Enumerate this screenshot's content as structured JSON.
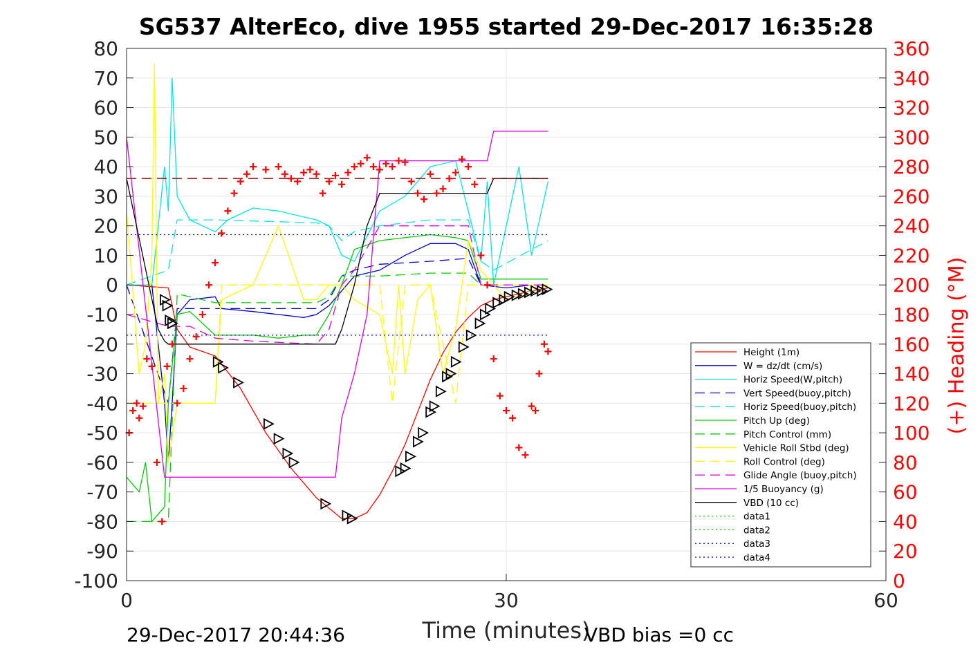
{
  "chart_data": {
    "type": "line",
    "title": "SG537 AlterEco, dive 1955 started 29-Dec-2017 16:35:28",
    "xlabel": "Time (minutes)",
    "ylabel": "",
    "y2label": "(+) Heading (°M)",
    "xlim": [
      0,
      60
    ],
    "ylim": [
      -100,
      80
    ],
    "y2lim": [
      0,
      360
    ],
    "x_ticks": [
      "0",
      "30",
      "60"
    ],
    "y_ticks": [
      "-100",
      "-90",
      "-80",
      "-70",
      "-60",
      "-50",
      "-40",
      "-30",
      "-20",
      "-10",
      "0",
      "10",
      "20",
      "30",
      "40",
      "50",
      "60",
      "70",
      "80"
    ],
    "y2_ticks": [
      "0",
      "20",
      "40",
      "60",
      "80",
      "100",
      "120",
      "140",
      "160",
      "180",
      "200",
      "220",
      "240",
      "260",
      "280",
      "300",
      "320",
      "340",
      "360"
    ],
    "grid": true,
    "legend_position": "bottom-right",
    "footer_left": "29-Dec-2017 20:44:36",
    "footer_right": "VBD bias =0 cc",
    "colors": {
      "red": "#ff0000",
      "blue": "#0000cc",
      "cyan": "#00e5e5",
      "green": "#00cc00",
      "yellow": "#ffff00",
      "magenta": "#dd00dd",
      "black": "#000000",
      "darkred": "#990000"
    },
    "legend": [
      {
        "label": "Height (1m)",
        "color": "#ff0000",
        "dash": "solid"
      },
      {
        "label": "W = dz/dt (cm/s)",
        "color": "#0000cc",
        "dash": "solid"
      },
      {
        "label": "Horiz Speed(W,pitch)",
        "color": "#00e5e5",
        "dash": "solid"
      },
      {
        "label": "Vert Speed(buoy,pitch)",
        "color": "#0000cc",
        "dash": "dashed"
      },
      {
        "label": "Horiz Speed(buoy,pitch)",
        "color": "#00e5e5",
        "dash": "dashed"
      },
      {
        "label": "Pitch Up (deg)",
        "color": "#00cc00",
        "dash": "solid"
      },
      {
        "label": "Pitch Control (mm)",
        "color": "#00cc00",
        "dash": "dashed"
      },
      {
        "label": "Vehicle Roll Stbd (deg)",
        "color": "#ffff00",
        "dash": "solid"
      },
      {
        "label": "Roll Control (deg)",
        "color": "#ffff00",
        "dash": "dashed"
      },
      {
        "label": "Glide Angle (buoy,pitch)",
        "color": "#dd00dd",
        "dash": "dashed"
      },
      {
        "label": "1/5 Buoyancy (g)",
        "color": "#dd00dd",
        "dash": "solid"
      },
      {
        "label": "VBD (10 cc)",
        "color": "#000000",
        "dash": "solid"
      },
      {
        "label": "data1",
        "color": "#00cc00",
        "dash": "dotted"
      },
      {
        "label": "data2",
        "color": "#00cc00",
        "dash": "dotted"
      },
      {
        "label": "data3",
        "color": "#0000cc",
        "dash": "dotted"
      },
      {
        "label": "data4",
        "color": "#0000cc",
        "dash": "dotted"
      }
    ],
    "series": [
      {
        "key": "height",
        "color": "#ff0000",
        "dash": "solid",
        "x": [
          0,
          3.3,
          4,
          5,
          7,
          9,
          11,
          13,
          15,
          17,
          18,
          19,
          20,
          21,
          22,
          23,
          24,
          25,
          26,
          27,
          28,
          29,
          30,
          31,
          32,
          33.3
        ],
        "y": [
          0,
          -1,
          -15,
          -21,
          -24,
          -35,
          -50,
          -62,
          -72,
          -79,
          -79,
          -77,
          -71,
          -63,
          -54,
          -43,
          -32,
          -23,
          -16,
          -11,
          -7,
          -5,
          -4,
          -3,
          -2,
          -1
        ]
      },
      {
        "key": "w",
        "color": "#0000cc",
        "dash": "solid",
        "x": [
          0,
          2,
          2.5,
          3,
          3.3,
          3.6,
          4,
          5,
          7,
          7.5,
          10,
          12,
          14,
          15,
          16,
          17,
          18,
          20,
          22,
          24,
          26,
          27,
          28,
          30,
          32,
          33.3
        ],
        "y": [
          0,
          0,
          -20,
          -40,
          -60,
          -40,
          -10,
          -5,
          -4,
          -8,
          -9,
          -10,
          -11,
          -10,
          -7,
          -2,
          3,
          5,
          10,
          14,
          14,
          12,
          0,
          -1,
          0,
          0
        ]
      },
      {
        "key": "horiz_w",
        "color": "#00e5e5",
        "dash": "solid",
        "x": [
          0,
          2,
          2.5,
          3,
          3.3,
          3.6,
          4,
          5,
          6,
          7,
          8,
          9,
          10,
          12,
          14,
          15,
          16,
          16.5,
          17,
          18,
          20,
          22,
          24,
          26,
          27,
          28,
          28.5,
          29,
          30,
          31,
          32,
          33.3
        ],
        "y": [
          0,
          0,
          20,
          40,
          25,
          70,
          30,
          22,
          20,
          18,
          22,
          24,
          26,
          25,
          23,
          22,
          20,
          15,
          10,
          8,
          25,
          30,
          40,
          42,
          25,
          8,
          35,
          0,
          20,
          40,
          10,
          35
        ]
      },
      {
        "key": "vert_buoy",
        "color": "#0000cc",
        "dash": "dashed",
        "x": [
          0,
          3.3,
          4,
          7,
          15,
          16,
          17,
          18,
          20,
          24,
          27,
          28,
          29,
          33.3
        ],
        "y": [
          0,
          -40,
          -8,
          -8,
          -8,
          -5,
          3,
          5,
          7,
          8,
          9,
          0,
          0,
          0
        ]
      },
      {
        "key": "horiz_buoy",
        "color": "#00e5e5",
        "dash": "dashed",
        "x": [
          0,
          3.3,
          4,
          7,
          15,
          16,
          17,
          18,
          20,
          24,
          27,
          28,
          29,
          33.3
        ],
        "y": [
          0,
          5,
          22,
          22,
          21,
          20,
          15,
          18,
          20,
          22,
          22,
          8,
          5,
          15
        ]
      },
      {
        "key": "pitch_up",
        "color": "#00cc00",
        "dash": "solid",
        "x": [
          0,
          1,
          1.5,
          2,
          3,
          3.3,
          4,
          5,
          7,
          10,
          12,
          14,
          15,
          16,
          17,
          18,
          20,
          24,
          26,
          27,
          28,
          30,
          33.3
        ],
        "y": [
          -65,
          -70,
          -60,
          -80,
          -75,
          -40,
          -10,
          -9,
          -17,
          -17,
          -18,
          -17,
          -17,
          -10,
          0,
          12,
          15,
          17,
          16,
          15,
          2,
          2,
          2
        ]
      },
      {
        "key": "pitch_ctrl",
        "color": "#00cc00",
        "dash": "dashed",
        "x": [
          0,
          3.3,
          4,
          7,
          15,
          16,
          17,
          18,
          20,
          24,
          27,
          28,
          29,
          33.3
        ],
        "y": [
          -80,
          -80,
          -3,
          -6,
          -6,
          -4,
          3,
          3,
          3,
          4,
          4,
          0,
          0,
          0
        ]
      },
      {
        "key": "roll",
        "color": "#ffff00",
        "dash": "solid",
        "x": [
          0,
          1,
          1.5,
          2,
          2.2,
          2.5,
          3,
          3.3,
          4,
          5,
          7,
          7.5,
          10,
          12,
          14,
          15,
          16,
          17,
          18,
          20,
          21,
          21.5,
          22,
          23,
          24,
          25,
          26,
          27,
          28,
          29,
          30,
          33.3
        ],
        "y": [
          25,
          -30,
          -20,
          10,
          75,
          -40,
          -30,
          -60,
          -40,
          -40,
          -40,
          -5,
          0,
          20,
          -5,
          -5,
          0,
          0,
          -5,
          -10,
          -30,
          0,
          -30,
          -5,
          0,
          -30,
          -15,
          15,
          5,
          0,
          -5,
          0
        ]
      },
      {
        "key": "roll_ctrl",
        "color": "#ffff00",
        "dash": "dashed",
        "x": [
          0,
          3.3,
          4,
          7,
          7.5,
          10,
          12,
          14,
          15,
          16,
          17,
          20,
          21,
          22,
          24,
          26,
          27,
          28,
          30,
          33.3
        ],
        "y": [
          -40,
          -40,
          -40,
          -40,
          0,
          0,
          0,
          0,
          0,
          0,
          0,
          0,
          -40,
          0,
          0,
          -40,
          0,
          0,
          0,
          0
        ]
      },
      {
        "key": "glide",
        "color": "#dd00dd",
        "dash": "dashed",
        "x": [
          0,
          3.3,
          4,
          5,
          7,
          10,
          15,
          16,
          17,
          18,
          20,
          24,
          27,
          28,
          29,
          33.3
        ],
        "y": [
          -10,
          -14,
          -14,
          -14,
          -18,
          -19,
          -20,
          -15,
          0,
          5,
          20,
          20,
          20,
          0,
          0,
          0
        ]
      },
      {
        "key": "buoyancy",
        "color": "#dd00dd",
        "dash": "solid",
        "x": [
          0,
          3,
          3.3,
          4,
          15,
          16,
          16.5,
          17,
          18,
          19,
          20,
          25,
          28,
          28.5,
          29,
          33.3
        ],
        "y": [
          50,
          -65,
          -65,
          -65,
          -65,
          -65,
          -65,
          -45,
          -30,
          -10,
          42,
          42,
          42,
          42,
          52,
          52
        ]
      },
      {
        "key": "vbd",
        "color": "#000000",
        "dash": "solid",
        "x": [
          0,
          2.5,
          3,
          3.3,
          4,
          15,
          16,
          16.5,
          17,
          18,
          19,
          20,
          24,
          28,
          28.5,
          29,
          30,
          33.3
        ],
        "y": [
          36,
          -15,
          -19,
          -20,
          -20,
          -20,
          -20,
          -20,
          -15,
          0,
          20,
          31,
          31,
          31,
          31,
          36,
          36,
          36
        ]
      },
      {
        "key": "target_dash",
        "color": "#990000",
        "dash": "dashed",
        "x": [
          0,
          33.3
        ],
        "y": [
          36,
          36
        ]
      },
      {
        "key": "data_top",
        "color": "#0000cc",
        "dash": "dotted",
        "x": [
          0,
          33.3
        ],
        "y": [
          17,
          17
        ]
      },
      {
        "key": "data_bottom",
        "color": "#0000cc",
        "dash": "dotted",
        "x": [
          0,
          33.3
        ],
        "y": [
          -17,
          -17
        ]
      }
    ],
    "heading_points": [
      {
        "x": 0.2,
        "h": 100
      },
      {
        "x": 0.5,
        "h": 115
      },
      {
        "x": 0.8,
        "h": 120
      },
      {
        "x": 1,
        "h": 110
      },
      {
        "x": 1.3,
        "h": 118
      },
      {
        "x": 1.6,
        "h": 150
      },
      {
        "x": 2,
        "h": 145
      },
      {
        "x": 2.4,
        "h": 80
      },
      {
        "x": 2.8,
        "h": 40
      },
      {
        "x": 3.2,
        "h": 145
      },
      {
        "x": 3.6,
        "h": 160
      },
      {
        "x": 4,
        "h": 120
      },
      {
        "x": 4.5,
        "h": 130
      },
      {
        "x": 5,
        "h": 150
      },
      {
        "x": 5.5,
        "h": 165
      },
      {
        "x": 6,
        "h": 180
      },
      {
        "x": 6.5,
        "h": 200
      },
      {
        "x": 7,
        "h": 215
      },
      {
        "x": 7.5,
        "h": 235
      },
      {
        "x": 8,
        "h": 250
      },
      {
        "x": 8.5,
        "h": 262
      },
      {
        "x": 9,
        "h": 270
      },
      {
        "x": 9.5,
        "h": 275
      },
      {
        "x": 10,
        "h": 280
      },
      {
        "x": 11,
        "h": 278
      },
      {
        "x": 12,
        "h": 280
      },
      {
        "x": 12.5,
        "h": 275
      },
      {
        "x": 13,
        "h": 272
      },
      {
        "x": 13.5,
        "h": 270
      },
      {
        "x": 14,
        "h": 276
      },
      {
        "x": 14.5,
        "h": 278
      },
      {
        "x": 15,
        "h": 275
      },
      {
        "x": 15.5,
        "h": 262
      },
      {
        "x": 16,
        "h": 270
      },
      {
        "x": 16.5,
        "h": 274
      },
      {
        "x": 17,
        "h": 268
      },
      {
        "x": 17.5,
        "h": 276
      },
      {
        "x": 18,
        "h": 280
      },
      {
        "x": 18.5,
        "h": 282
      },
      {
        "x": 19,
        "h": 286
      },
      {
        "x": 19.5,
        "h": 280
      },
      {
        "x": 20,
        "h": 278
      },
      {
        "x": 20.5,
        "h": 282
      },
      {
        "x": 21,
        "h": 280
      },
      {
        "x": 21.5,
        "h": 284
      },
      {
        "x": 22,
        "h": 283
      },
      {
        "x": 22.5,
        "h": 270
      },
      {
        "x": 23,
        "h": 262
      },
      {
        "x": 23.5,
        "h": 258
      },
      {
        "x": 24,
        "h": 275
      },
      {
        "x": 24.5,
        "h": 262
      },
      {
        "x": 25,
        "h": 265
      },
      {
        "x": 25.5,
        "h": 272
      },
      {
        "x": 26,
        "h": 276
      },
      {
        "x": 26.5,
        "h": 285
      },
      {
        "x": 27,
        "h": 280
      },
      {
        "x": 27.5,
        "h": 268
      },
      {
        "x": 28,
        "h": 220
      },
      {
        "x": 28.5,
        "h": 200
      },
      {
        "x": 29,
        "h": 150
      },
      {
        "x": 29.5,
        "h": 125
      },
      {
        "x": 30,
        "h": 115
      },
      {
        "x": 30.5,
        "h": 110
      },
      {
        "x": 31,
        "h": 90
      },
      {
        "x": 31.5,
        "h": 85
      },
      {
        "x": 32,
        "h": 118
      },
      {
        "x": 32.3,
        "h": 115
      },
      {
        "x": 32.6,
        "h": 140
      },
      {
        "x": 33,
        "h": 160
      },
      {
        "x": 33.3,
        "h": 155
      }
    ],
    "triangle_points": [
      {
        "x": 3.0,
        "y": -5
      },
      {
        "x": 3.2,
        "y": -7
      },
      {
        "x": 3.4,
        "y": -12
      },
      {
        "x": 3.6,
        "y": -13
      },
      {
        "x": 7.2,
        "y": -26
      },
      {
        "x": 7.6,
        "y": -28
      },
      {
        "x": 8.8,
        "y": -33
      },
      {
        "x": 11.2,
        "y": -47
      },
      {
        "x": 12.0,
        "y": -52
      },
      {
        "x": 12.7,
        "y": -57
      },
      {
        "x": 13.2,
        "y": -60
      },
      {
        "x": 15.7,
        "y": -74
      },
      {
        "x": 17.4,
        "y": -78
      },
      {
        "x": 17.8,
        "y": -79
      },
      {
        "x": 21.6,
        "y": -63
      },
      {
        "x": 22.0,
        "y": -62
      },
      {
        "x": 22.4,
        "y": -58
      },
      {
        "x": 23.0,
        "y": -53
      },
      {
        "x": 23.4,
        "y": -50
      },
      {
        "x": 24.0,
        "y": -43
      },
      {
        "x": 24.3,
        "y": -41
      },
      {
        "x": 24.8,
        "y": -36
      },
      {
        "x": 25.3,
        "y": -31
      },
      {
        "x": 25.6,
        "y": -30
      },
      {
        "x": 26.0,
        "y": -26
      },
      {
        "x": 26.6,
        "y": -21
      },
      {
        "x": 27.2,
        "y": -17
      },
      {
        "x": 27.9,
        "y": -13
      },
      {
        "x": 28.3,
        "y": -10
      },
      {
        "x": 28.7,
        "y": -8
      },
      {
        "x": 29.3,
        "y": -6
      },
      {
        "x": 29.8,
        "y": -5
      },
      {
        "x": 30.2,
        "y": -4
      },
      {
        "x": 30.8,
        "y": -3.5
      },
      {
        "x": 31.3,
        "y": -3
      },
      {
        "x": 31.8,
        "y": -2.5
      },
      {
        "x": 32.3,
        "y": -2
      },
      {
        "x": 32.8,
        "y": -2
      },
      {
        "x": 33.2,
        "y": -1.5
      }
    ]
  }
}
